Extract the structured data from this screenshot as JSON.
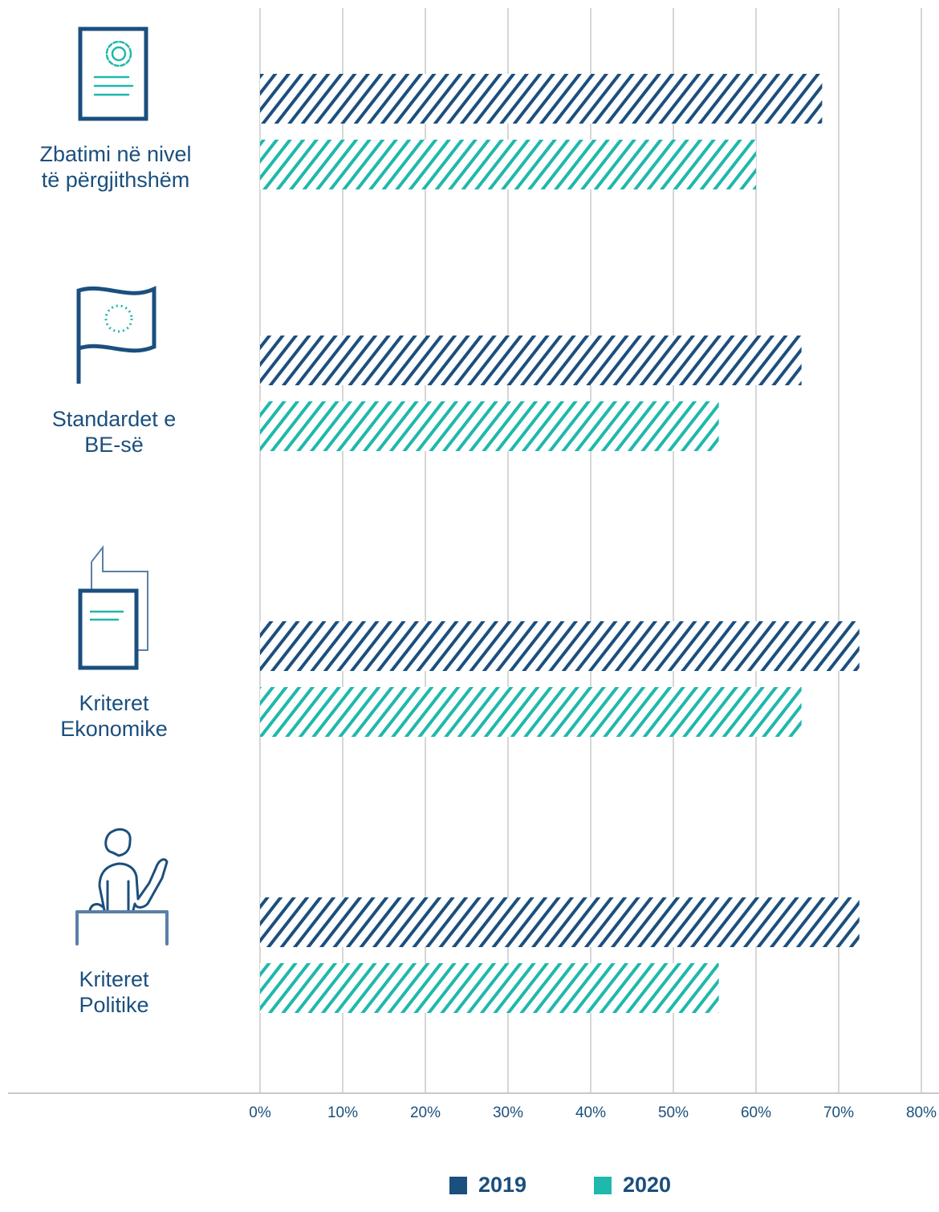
{
  "chart_data": {
    "type": "bar",
    "orientation": "horizontal",
    "categories": [
      [
        "Zbatimi në nivel",
        "të përgjithshëm"
      ],
      [
        "Standardet e",
        "BE-së"
      ],
      [
        "Kriteret",
        "Ekonomike"
      ],
      [
        "Kriteret",
        "Politike"
      ]
    ],
    "series": [
      {
        "name": "2019",
        "values": [
          68,
          65.5,
          72.5,
          72.5
        ],
        "color": "#1b4f7e",
        "pattern": "diagonal-hatch"
      },
      {
        "name": "2020",
        "values": [
          60,
          55.5,
          65.5,
          55.5
        ],
        "color": "#1fb8ac",
        "pattern": "diagonal-hatch"
      }
    ],
    "xlim": [
      0,
      80
    ],
    "x_ticks": [
      "0%",
      "10%",
      "20%",
      "30%",
      "40%",
      "50%",
      "60%",
      "70%",
      "80%"
    ],
    "grid": "vertical",
    "legend": "bottom-center"
  },
  "icons": [
    "gear-document-icon",
    "eu-flag-icon",
    "documents-icon",
    "speaker-podium-icon"
  ],
  "colors": {
    "dark": "#1b4f7e",
    "teal": "#1fb8ac",
    "grid": "#c8c8c8"
  }
}
